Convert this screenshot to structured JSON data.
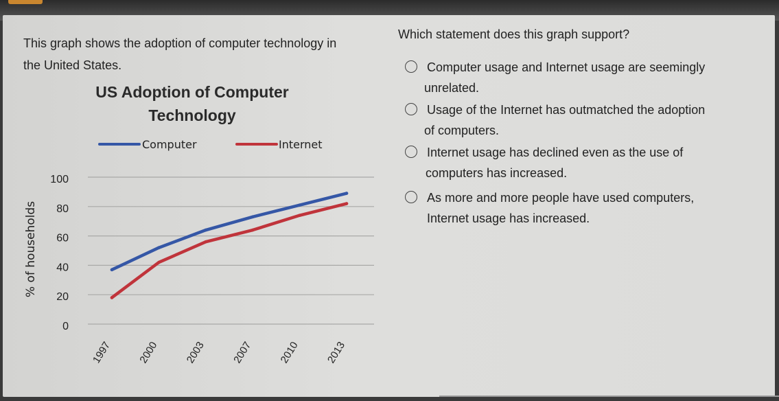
{
  "intro_text": "This graph shows the adoption of computer technology in the United States.",
  "question": "Which statement does this graph support?",
  "options": [
    {
      "label_line1": "Computer usage and Internet usage are seemingly",
      "label_line2": "unrelated."
    },
    {
      "label_line1": "Usage of the Internet has outmatched the adoption",
      "label_line2": "of computers."
    },
    {
      "label_line1": "Internet usage has declined even as the use of",
      "label_line2": "computers has increased."
    },
    {
      "label_line1": "As more and more people have used computers,",
      "label_line2": "Internet usage has increased."
    }
  ],
  "chart_data": {
    "type": "line",
    "title": "US Adoption of Computer Technology",
    "title_line1": "US Adoption of Computer",
    "title_line2": "Technology",
    "xlabel": "",
    "ylabel": "% of households",
    "x": [
      "1997",
      "2000",
      "2003",
      "2007",
      "2010",
      "2013"
    ],
    "ylim": [
      0,
      100
    ],
    "yticks": [
      0,
      20,
      40,
      60,
      80,
      100
    ],
    "grid": true,
    "legend_position": "top",
    "series": [
      {
        "name": "Computer",
        "color": "#3557a6",
        "values": [
          37,
          52,
          64,
          73,
          81,
          89
        ]
      },
      {
        "name": "Internet",
        "color": "#c0343b",
        "values": [
          18,
          42,
          56,
          64,
          74,
          82
        ]
      }
    ]
  }
}
